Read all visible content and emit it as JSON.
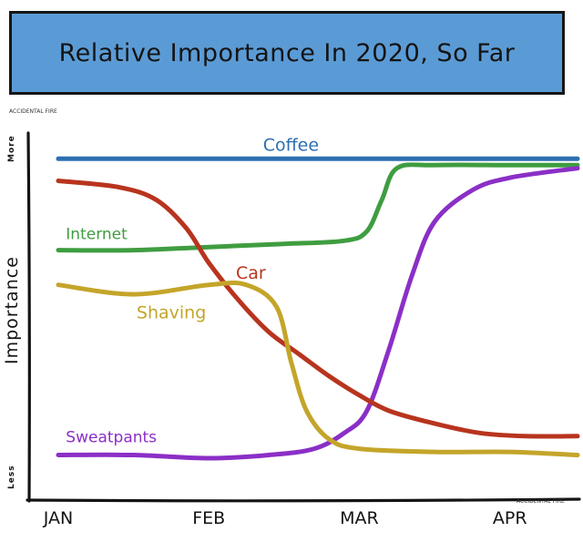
{
  "header": {
    "title": "Relative Importance In 2020, So Far"
  },
  "watermark": {
    "top": "ACCIDENTAL FIRE",
    "bottom": "ACCIDENTAL FIRE"
  },
  "chart_data": {
    "type": "line",
    "title": "Relative Importance In 2020, So Far",
    "xlabel": "",
    "ylabel": "Importance",
    "y_high_label": "More",
    "y_low_label": "Less",
    "categories": [
      "Jan",
      "Feb",
      "Mar",
      "Apr"
    ],
    "x_tick_positions": [
      0,
      1,
      2,
      3
    ],
    "xlim": [
      -0.12,
      3.5
    ],
    "ylim": [
      0,
      100
    ],
    "grid": false,
    "legend": "none (series labeled directly on the lines)",
    "series": [
      {
        "name": "Coffee",
        "color": "#2e6fb0",
        "points": [
          [
            0,
            95
          ],
          [
            0.5,
            95
          ],
          [
            1,
            95
          ],
          [
            1.5,
            95
          ],
          [
            2,
            95
          ],
          [
            2.5,
            95
          ],
          [
            3,
            95
          ],
          [
            3.45,
            95
          ]
        ]
      },
      {
        "name": "Car",
        "color": "#b8341e",
        "points": [
          [
            0,
            88
          ],
          [
            0.4,
            86
          ],
          [
            0.65,
            82
          ],
          [
            0.85,
            73
          ],
          [
            1.0,
            62
          ],
          [
            1.2,
            50
          ],
          [
            1.4,
            40
          ],
          [
            1.6,
            33
          ],
          [
            1.8,
            26
          ],
          [
            2.0,
            20
          ],
          [
            2.2,
            15
          ],
          [
            2.5,
            11
          ],
          [
            2.8,
            8
          ],
          [
            3.1,
            7
          ],
          [
            3.45,
            7
          ]
        ]
      },
      {
        "name": "Internet",
        "color": "#3f9d40",
        "points": [
          [
            0,
            66
          ],
          [
            0.5,
            66
          ],
          [
            1,
            67
          ],
          [
            1.5,
            68
          ],
          [
            1.9,
            69
          ],
          [
            2.05,
            72
          ],
          [
            2.15,
            82
          ],
          [
            2.25,
            92
          ],
          [
            2.5,
            93
          ],
          [
            3,
            93
          ],
          [
            3.45,
            93
          ]
        ]
      },
      {
        "name": "Shaving",
        "color": "#c4a52a",
        "points": [
          [
            0,
            55
          ],
          [
            0.5,
            52
          ],
          [
            1,
            55
          ],
          [
            1.25,
            55
          ],
          [
            1.45,
            48
          ],
          [
            1.55,
            30
          ],
          [
            1.65,
            15
          ],
          [
            1.8,
            6
          ],
          [
            2.0,
            3
          ],
          [
            2.5,
            2
          ],
          [
            3,
            2
          ],
          [
            3.45,
            1
          ]
        ]
      },
      {
        "name": "Sweatpants",
        "color": "#8b2fc7",
        "points": [
          [
            0,
            1
          ],
          [
            0.5,
            1
          ],
          [
            1,
            0
          ],
          [
            1.4,
            1
          ],
          [
            1.7,
            3
          ],
          [
            1.9,
            8
          ],
          [
            2.05,
            15
          ],
          [
            2.2,
            35
          ],
          [
            2.35,
            58
          ],
          [
            2.5,
            75
          ],
          [
            2.75,
            85
          ],
          [
            3.0,
            89
          ],
          [
            3.45,
            92
          ]
        ]
      }
    ],
    "label_anchor_x": {
      "Coffee": 1.36,
      "Car": 1.18,
      "Internet": 0.05,
      "Shaving": 0.52,
      "Sweatpants": 0.05
    }
  }
}
